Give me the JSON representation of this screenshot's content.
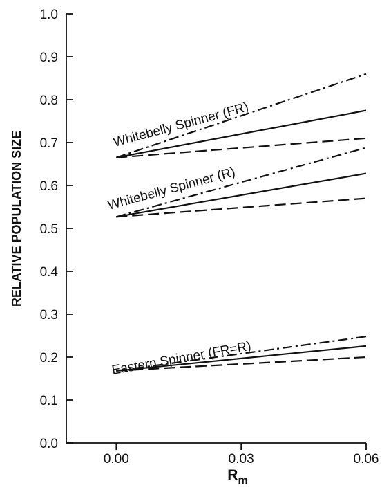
{
  "chart_data": {
    "type": "line",
    "xlabel": "R",
    "xlabel_sub": "m",
    "ylabel": "RELATIVE POPULATION SIZE",
    "xlim": [
      -0.012,
      0.06
    ],
    "ylim": [
      0.0,
      1.0
    ],
    "xticks": [
      "0.00",
      "0.03",
      "0.06"
    ],
    "xtick_values": [
      0.0,
      0.03,
      0.06
    ],
    "yticks": [
      "0.0",
      "0.1",
      "0.2",
      "0.3",
      "0.4",
      "0.5",
      "0.6",
      "0.7",
      "0.8",
      "0.9",
      "1.0"
    ],
    "ytick_values": [
      0.0,
      0.1,
      0.2,
      0.3,
      0.4,
      0.5,
      0.6,
      0.7,
      0.8,
      0.9,
      1.0
    ],
    "grid": false,
    "groups": [
      {
        "annotation": "Whitebelly Spinner (FR)",
        "series": [
          {
            "style": "dashdot",
            "x": [
              0.0,
              0.06
            ],
            "values": [
              0.665,
              0.86
            ]
          },
          {
            "style": "solid",
            "x": [
              0.0,
              0.06
            ],
            "values": [
              0.665,
              0.775
            ]
          },
          {
            "style": "dashed",
            "x": [
              0.0,
              0.06
            ],
            "values": [
              0.665,
              0.71
            ]
          }
        ]
      },
      {
        "annotation": "Whitebelly Spinner (R)",
        "series": [
          {
            "style": "dashdot",
            "x": [
              0.0,
              0.06
            ],
            "values": [
              0.527,
              0.688
            ]
          },
          {
            "style": "solid",
            "x": [
              0.0,
              0.06
            ],
            "values": [
              0.527,
              0.628
            ]
          },
          {
            "style": "dashed",
            "x": [
              0.0,
              0.06
            ],
            "values": [
              0.527,
              0.57
            ]
          }
        ]
      },
      {
        "annotation": "Eastern Spinner (FR=R)",
        "series": [
          {
            "style": "dashdot",
            "x": [
              0.0,
              0.06
            ],
            "values": [
              0.168,
              0.248
            ]
          },
          {
            "style": "solid",
            "x": [
              0.0,
              0.06
            ],
            "values": [
              0.168,
              0.226
            ]
          },
          {
            "style": "dashed",
            "x": [
              0.0,
              0.06
            ],
            "values": [
              0.168,
              0.2
            ]
          }
        ]
      }
    ]
  }
}
